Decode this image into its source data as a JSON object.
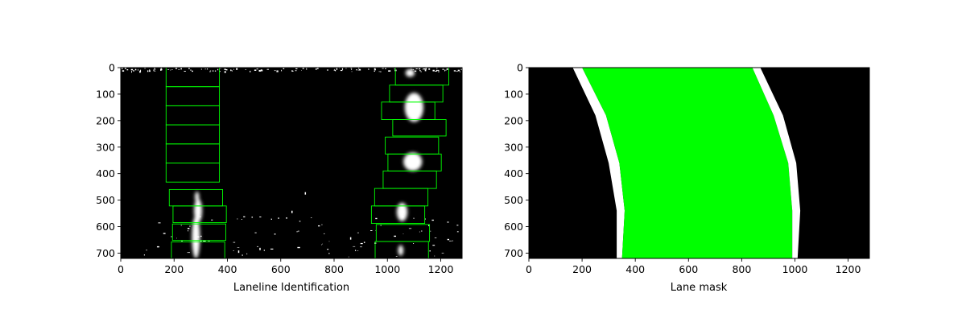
{
  "figure": {
    "background": "#ffffff"
  },
  "chart_data": [
    {
      "type": "image",
      "xlabel": "Laneline Identification",
      "ylabel": "",
      "title": "",
      "xlim": [
        0,
        1280
      ],
      "ylim": [
        720,
        0
      ],
      "x_ticks": [
        0,
        200,
        400,
        600,
        800,
        1000,
        1200
      ],
      "y_ticks": [
        0,
        100,
        200,
        300,
        400,
        500,
        600,
        700
      ],
      "image_background": "#000000",
      "window_color": "#00ff00",
      "left_windows": [
        {
          "x0": 170,
          "x1": 370,
          "y0": 0,
          "y1": 72
        },
        {
          "x0": 170,
          "x1": 370,
          "y0": 72,
          "y1": 144
        },
        {
          "x0": 170,
          "x1": 370,
          "y0": 144,
          "y1": 216
        },
        {
          "x0": 170,
          "x1": 370,
          "y0": 216,
          "y1": 288
        },
        {
          "x0": 170,
          "x1": 370,
          "y0": 288,
          "y1": 360
        },
        {
          "x0": 170,
          "x1": 370,
          "y0": 360,
          "y1": 432
        },
        {
          "x0": 182,
          "x1": 382,
          "y0": 460,
          "y1": 522
        },
        {
          "x0": 196,
          "x1": 396,
          "y0": 522,
          "y1": 585
        },
        {
          "x0": 194,
          "x1": 394,
          "y0": 590,
          "y1": 652
        },
        {
          "x0": 190,
          "x1": 390,
          "y0": 658,
          "y1": 720
        }
      ],
      "right_windows": [
        {
          "x0": 1030,
          "x1": 1230,
          "y0": 0,
          "y1": 66
        },
        {
          "x0": 1008,
          "x1": 1208,
          "y0": 66,
          "y1": 130
        },
        {
          "x0": 978,
          "x1": 1178,
          "y0": 130,
          "y1": 196
        },
        {
          "x0": 1020,
          "x1": 1220,
          "y0": 196,
          "y1": 258
        },
        {
          "x0": 992,
          "x1": 1192,
          "y0": 262,
          "y1": 326
        },
        {
          "x0": 1002,
          "x1": 1202,
          "y0": 326,
          "y1": 390
        },
        {
          "x0": 984,
          "x1": 1184,
          "y0": 390,
          "y1": 456
        },
        {
          "x0": 952,
          "x1": 1152,
          "y0": 456,
          "y1": 522
        },
        {
          "x0": 940,
          "x1": 1140,
          "y0": 522,
          "y1": 588
        },
        {
          "x0": 958,
          "x1": 1158,
          "y0": 592,
          "y1": 656
        },
        {
          "x0": 954,
          "x1": 1154,
          "y0": 656,
          "y1": 720
        }
      ],
      "left_line_blobs": [
        {
          "x": 282,
          "y": 640,
          "w": 30,
          "h": 160
        },
        {
          "x": 290,
          "y": 540,
          "w": 30,
          "h": 90
        },
        {
          "x": 286,
          "y": 488,
          "w": 16,
          "h": 40
        }
      ],
      "right_line_blobs": [
        {
          "x": 1085,
          "y": 20,
          "w": 34,
          "h": 30
        },
        {
          "x": 1100,
          "y": 150,
          "w": 70,
          "h": 110
        },
        {
          "x": 1095,
          "y": 355,
          "w": 70,
          "h": 70
        },
        {
          "x": 1055,
          "y": 545,
          "w": 40,
          "h": 70
        },
        {
          "x": 1050,
          "y": 690,
          "w": 20,
          "h": 40
        }
      ]
    },
    {
      "type": "image",
      "xlabel": "Lane mask",
      "ylabel": "",
      "title": "",
      "xlim": [
        0,
        1280
      ],
      "ylim": [
        720,
        0
      ],
      "x_ticks": [
        0,
        200,
        400,
        600,
        800,
        1000,
        1200
      ],
      "y_ticks": [
        0,
        100,
        200,
        300,
        400,
        500,
        600,
        700
      ],
      "image_background": "#000000",
      "lane_fill_color": "#00ff00",
      "lane_line_color": "#ffffff",
      "left_line": [
        [
          165,
          0
        ],
        [
          250,
          180
        ],
        [
          300,
          360
        ],
        [
          330,
          540
        ],
        [
          330,
          720
        ]
      ],
      "left_fill_edge": [
        [
          200,
          0
        ],
        [
          290,
          180
        ],
        [
          340,
          360
        ],
        [
          360,
          540
        ],
        [
          350,
          720
        ]
      ],
      "right_fill_edge": [
        [
          840,
          0
        ],
        [
          920,
          180
        ],
        [
          975,
          360
        ],
        [
          990,
          540
        ],
        [
          990,
          720
        ]
      ],
      "right_line": [
        [
          870,
          0
        ],
        [
          955,
          180
        ],
        [
          1005,
          360
        ],
        [
          1020,
          540
        ],
        [
          1010,
          720
        ]
      ]
    }
  ]
}
